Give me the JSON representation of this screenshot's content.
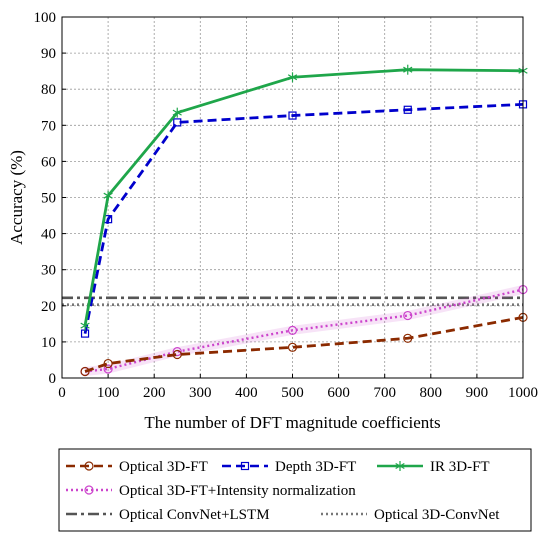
{
  "chart_data": {
    "type": "line",
    "title": "",
    "xlabel": "The number of DFT magnitude coefficients",
    "ylabel": "Accuracy (%)",
    "xlim": [
      0,
      1000
    ],
    "ylim": [
      0,
      100
    ],
    "xticks": [
      0,
      100,
      200,
      300,
      400,
      500,
      600,
      700,
      800,
      900,
      1000
    ],
    "yticks": [
      0,
      10,
      20,
      30,
      40,
      50,
      60,
      70,
      80,
      90,
      100
    ],
    "grid": true,
    "legend_position": "bottom",
    "series": [
      {
        "name": "Optical 3D-FT",
        "color": "#8b2a00",
        "style": "dashed",
        "marker": "circle",
        "x": [
          50,
          100,
          250,
          500,
          750,
          1000
        ],
        "y": [
          1.8,
          4.0,
          6.5,
          8.5,
          11.0,
          16.8
        ]
      },
      {
        "name": "Depth 3D-FT",
        "color": "#0000cc",
        "style": "dashed",
        "marker": "square",
        "x": [
          50,
          100,
          250,
          500,
          750,
          1000
        ],
        "y": [
          12.3,
          44.0,
          70.8,
          72.7,
          74.3,
          75.8
        ]
      },
      {
        "name": "IR 3D-FT",
        "color": "#1fa64a",
        "style": "solid",
        "marker": "star",
        "x": [
          50,
          100,
          250,
          500,
          750,
          1000
        ],
        "y": [
          14.5,
          50.5,
          73.5,
          83.3,
          85.4,
          85.1
        ]
      },
      {
        "name": "Optical 3D-FT+Intensity normalization",
        "color": "#cc44cc",
        "style": "dotted",
        "marker": "circle",
        "x": [
          50,
          100,
          250,
          500,
          750,
          1000
        ],
        "y": [
          1.8,
          2.5,
          7.3,
          13.2,
          17.3,
          24.5
        ]
      },
      {
        "name": "Optical ConvNet+LSTM",
        "color": "#555555",
        "style": "dashdot",
        "marker": "none",
        "y_constant": 22.2
      },
      {
        "name": "Optical 3D-ConvNet",
        "color": "#777777",
        "style": "dotted",
        "marker": "none",
        "y_constant": 20.3
      }
    ]
  }
}
